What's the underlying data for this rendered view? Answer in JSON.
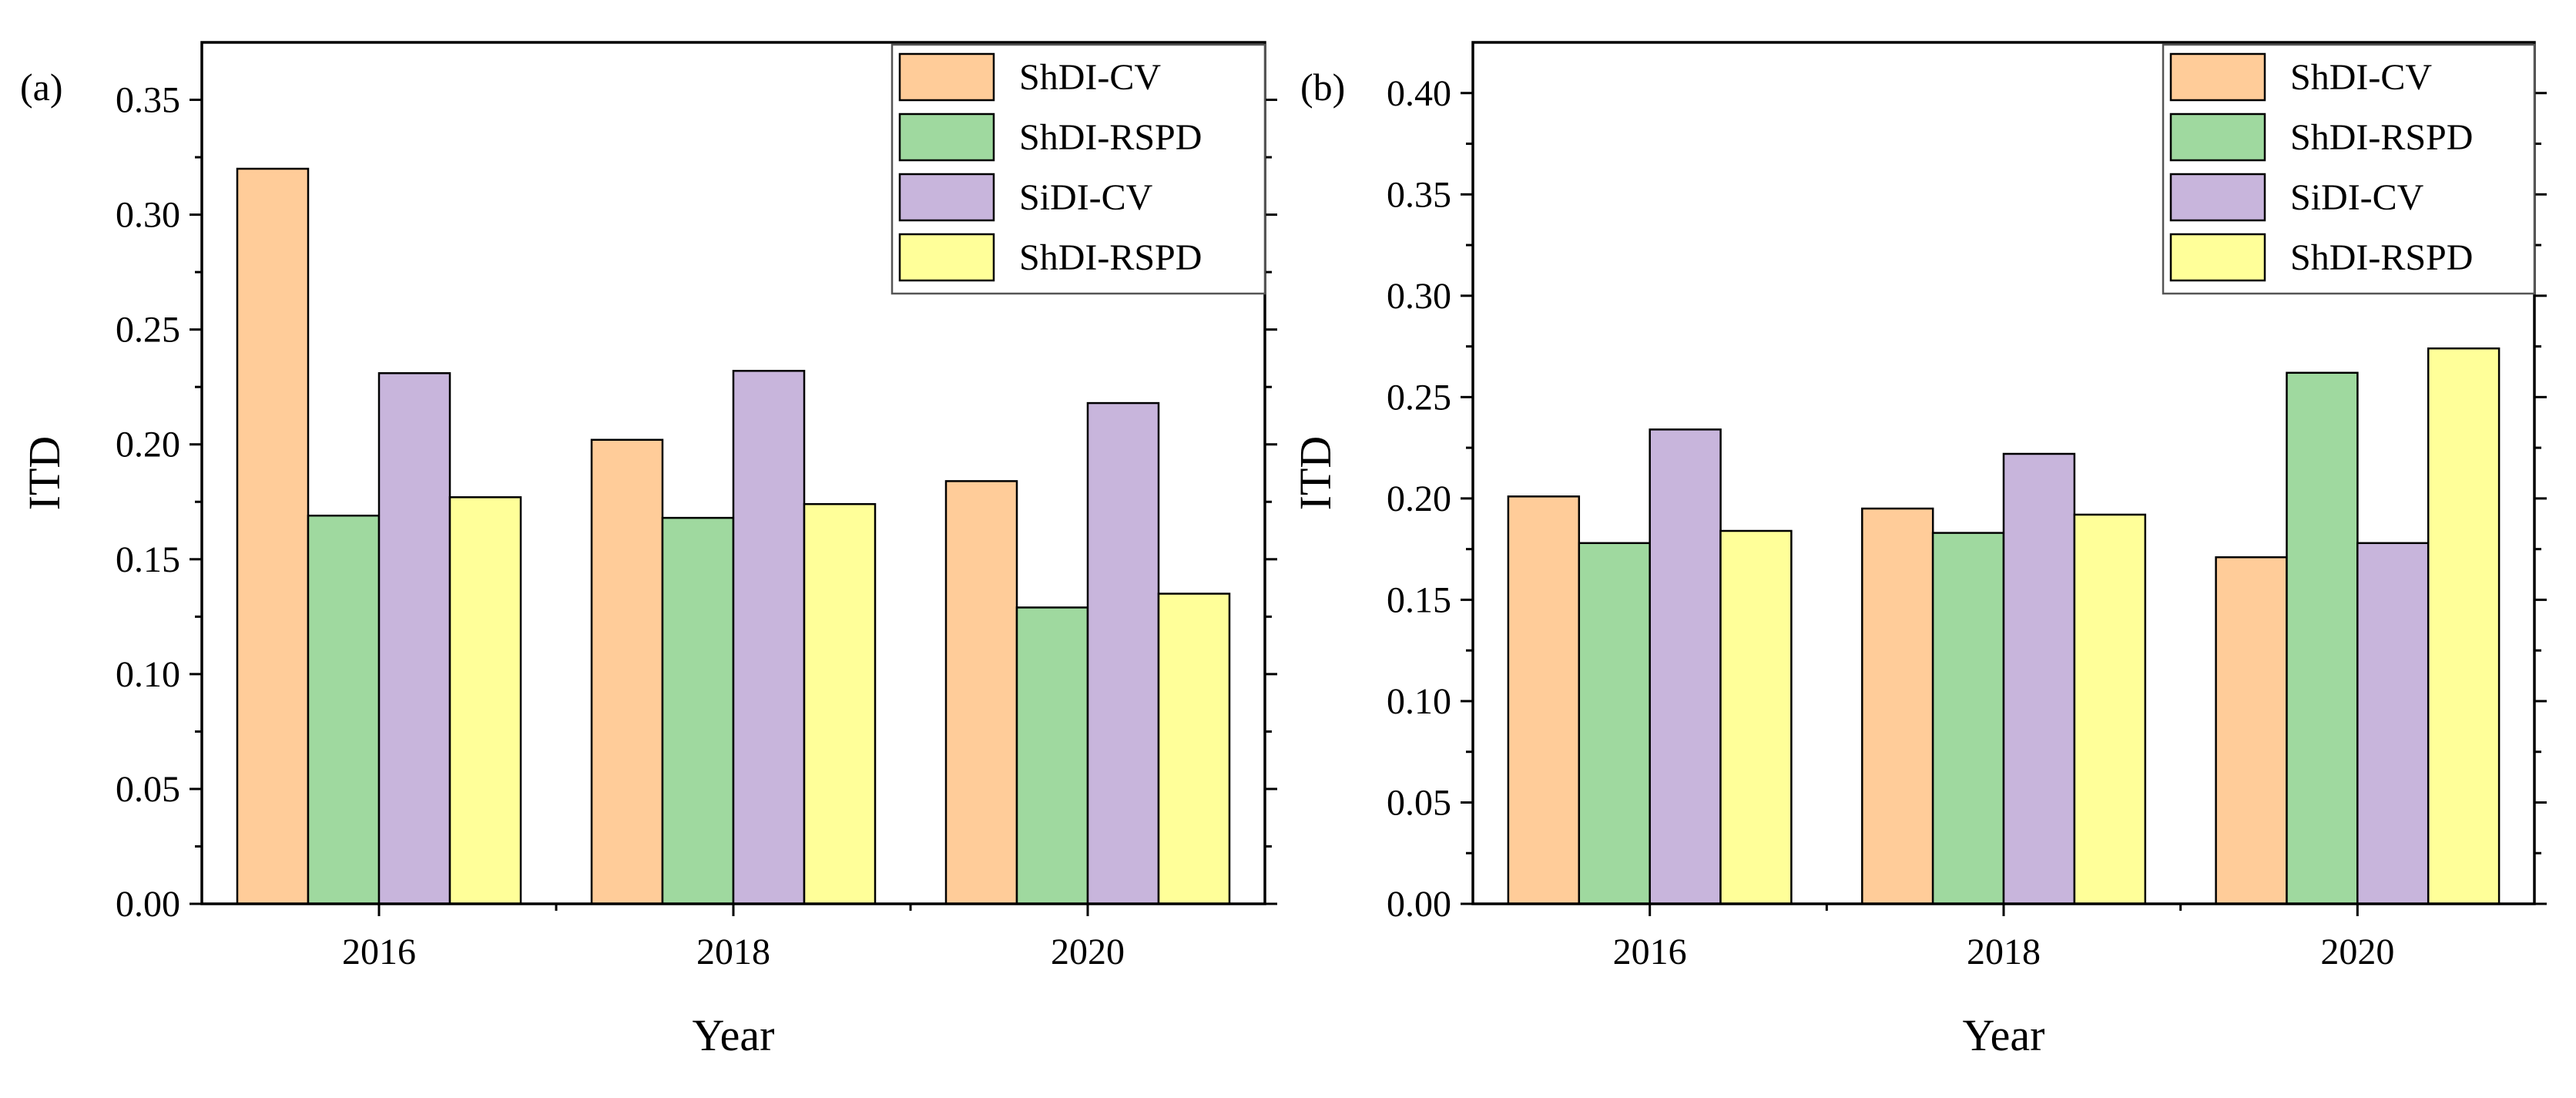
{
  "colors": {
    "ShDI-CV": "#FFCC99",
    "ShDI-RSPD": "#9FD99F",
    "SiDI-CV": "#C8B5DC",
    "ShDI-RSPD-2": "#FFFF99",
    "stroke": "#000000"
  },
  "chart_data": [
    {
      "type": "bar",
      "panel_label": "(a)",
      "title": "",
      "xlabel": "Year",
      "ylabel": "ITD",
      "categories": [
        "2016",
        "2018",
        "2020"
      ],
      "ylim": [
        0,
        0.375
      ],
      "yticks": [
        0.0,
        0.05,
        0.1,
        0.15,
        0.2,
        0.25,
        0.3,
        0.35
      ],
      "ytick_labels": [
        "0.00",
        "0.05",
        "0.10",
        "0.15",
        "0.20",
        "0.25",
        "0.30",
        "0.35"
      ],
      "legend_position": "top-right",
      "series": [
        {
          "name": "ShDI-CV",
          "color_key": "ShDI-CV",
          "values": [
            0.32,
            0.202,
            0.184
          ]
        },
        {
          "name": "ShDI-RSPD",
          "color_key": "ShDI-RSPD",
          "values": [
            0.169,
            0.168,
            0.129
          ]
        },
        {
          "name": "SiDI-CV",
          "color_key": "SiDI-CV",
          "values": [
            0.231,
            0.232,
            0.218
          ]
        },
        {
          "name": "ShDI-RSPD",
          "color_key": "ShDI-RSPD-2",
          "values": [
            0.177,
            0.174,
            0.135
          ]
        }
      ]
    },
    {
      "type": "bar",
      "panel_label": "(b)",
      "title": "",
      "xlabel": "Year",
      "ylabel": "ITD",
      "categories": [
        "2016",
        "2018",
        "2020"
      ],
      "ylim": [
        0,
        0.425
      ],
      "yticks": [
        0.0,
        0.05,
        0.1,
        0.15,
        0.2,
        0.25,
        0.3,
        0.35,
        0.4
      ],
      "ytick_labels": [
        "0.00",
        "0.05",
        "0.10",
        "0.15",
        "0.20",
        "0.25",
        "0.30",
        "0.35",
        "0.40"
      ],
      "legend_position": "top-right",
      "series": [
        {
          "name": "ShDI-CV",
          "color_key": "ShDI-CV",
          "values": [
            0.201,
            0.195,
            0.171
          ]
        },
        {
          "name": "ShDI-RSPD",
          "color_key": "ShDI-RSPD",
          "values": [
            0.178,
            0.183,
            0.262
          ]
        },
        {
          "name": "SiDI-CV",
          "color_key": "SiDI-CV",
          "values": [
            0.234,
            0.222,
            0.178
          ]
        },
        {
          "name": "ShDI-RSPD",
          "color_key": "ShDI-RSPD-2",
          "values": [
            0.184,
            0.192,
            0.274
          ]
        }
      ]
    }
  ]
}
